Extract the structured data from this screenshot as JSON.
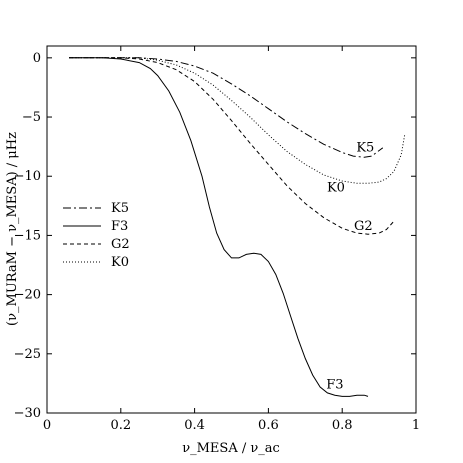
{
  "chart_data": {
    "type": "line",
    "xlabel": "ν_MESA / ν_ac",
    "ylabel": "(ν_MURaM − ν_MESA) / μHz",
    "xlim": [
      0,
      1.0
    ],
    "ylim": [
      -30,
      1
    ],
    "x_ticks": [
      "0",
      "0.2",
      "0.4",
      "0.6",
      "0.8",
      "1"
    ],
    "y_ticks": [
      "0",
      "−5",
      "−10",
      "−15",
      "−20",
      "−25",
      "−30"
    ],
    "grid": false,
    "legend_position": "left-middle",
    "series": [
      {
        "name": "K5",
        "dash": "dashdot",
        "end_label": "K5",
        "x": [
          0.06,
          0.1,
          0.15,
          0.2,
          0.25,
          0.3,
          0.35,
          0.4,
          0.45,
          0.5,
          0.55,
          0.6,
          0.65,
          0.7,
          0.75,
          0.8,
          0.83,
          0.86,
          0.88,
          0.91
        ],
        "y": [
          0.0,
          0.0,
          0.0,
          0.0,
          0.0,
          -0.1,
          -0.3,
          -0.7,
          -1.3,
          -2.2,
          -3.2,
          -4.3,
          -5.4,
          -6.4,
          -7.3,
          -8.0,
          -8.3,
          -8.4,
          -8.3,
          -7.6
        ]
      },
      {
        "name": "F3",
        "dash": "solid",
        "end_label": "F3",
        "x": [
          0.06,
          0.1,
          0.15,
          0.2,
          0.25,
          0.28,
          0.3,
          0.33,
          0.36,
          0.39,
          0.42,
          0.44,
          0.46,
          0.48,
          0.5,
          0.52,
          0.54,
          0.56,
          0.58,
          0.6,
          0.62,
          0.64,
          0.66,
          0.68,
          0.7,
          0.72,
          0.74,
          0.76,
          0.78,
          0.8,
          0.82,
          0.84,
          0.86,
          0.87
        ],
        "y": [
          0.0,
          0.0,
          0.0,
          -0.1,
          -0.4,
          -0.9,
          -1.5,
          -2.8,
          -4.6,
          -7.0,
          -10.0,
          -12.6,
          -14.8,
          -16.2,
          -16.9,
          -16.9,
          -16.6,
          -16.5,
          -16.6,
          -17.2,
          -18.3,
          -19.9,
          -21.8,
          -23.7,
          -25.4,
          -26.8,
          -27.8,
          -28.3,
          -28.5,
          -28.6,
          -28.6,
          -28.5,
          -28.5,
          -28.6
        ]
      },
      {
        "name": "G2",
        "dash": "dashed",
        "end_label": "G2",
        "x": [
          0.06,
          0.1,
          0.15,
          0.2,
          0.25,
          0.3,
          0.35,
          0.4,
          0.45,
          0.5,
          0.55,
          0.6,
          0.65,
          0.7,
          0.75,
          0.8,
          0.84,
          0.87,
          0.9,
          0.92,
          0.94
        ],
        "y": [
          0.0,
          0.0,
          0.0,
          0.0,
          -0.1,
          -0.4,
          -1.0,
          -2.0,
          -3.5,
          -5.3,
          -7.2,
          -9.0,
          -10.8,
          -12.3,
          -13.5,
          -14.4,
          -14.8,
          -14.9,
          -14.8,
          -14.5,
          -13.8
        ]
      },
      {
        "name": "K0",
        "dash": "dotted",
        "end_label": "K0",
        "x": [
          0.06,
          0.1,
          0.15,
          0.2,
          0.25,
          0.3,
          0.35,
          0.4,
          0.45,
          0.5,
          0.55,
          0.6,
          0.65,
          0.7,
          0.75,
          0.8,
          0.84,
          0.87,
          0.9,
          0.92,
          0.94,
          0.96,
          0.97
        ],
        "y": [
          0.0,
          0.0,
          0.0,
          0.0,
          0.0,
          -0.2,
          -0.6,
          -1.3,
          -2.3,
          -3.6,
          -5.0,
          -6.5,
          -7.9,
          -9.0,
          -9.9,
          -10.4,
          -10.6,
          -10.6,
          -10.5,
          -10.2,
          -9.6,
          -8.2,
          -6.4
        ]
      }
    ]
  }
}
